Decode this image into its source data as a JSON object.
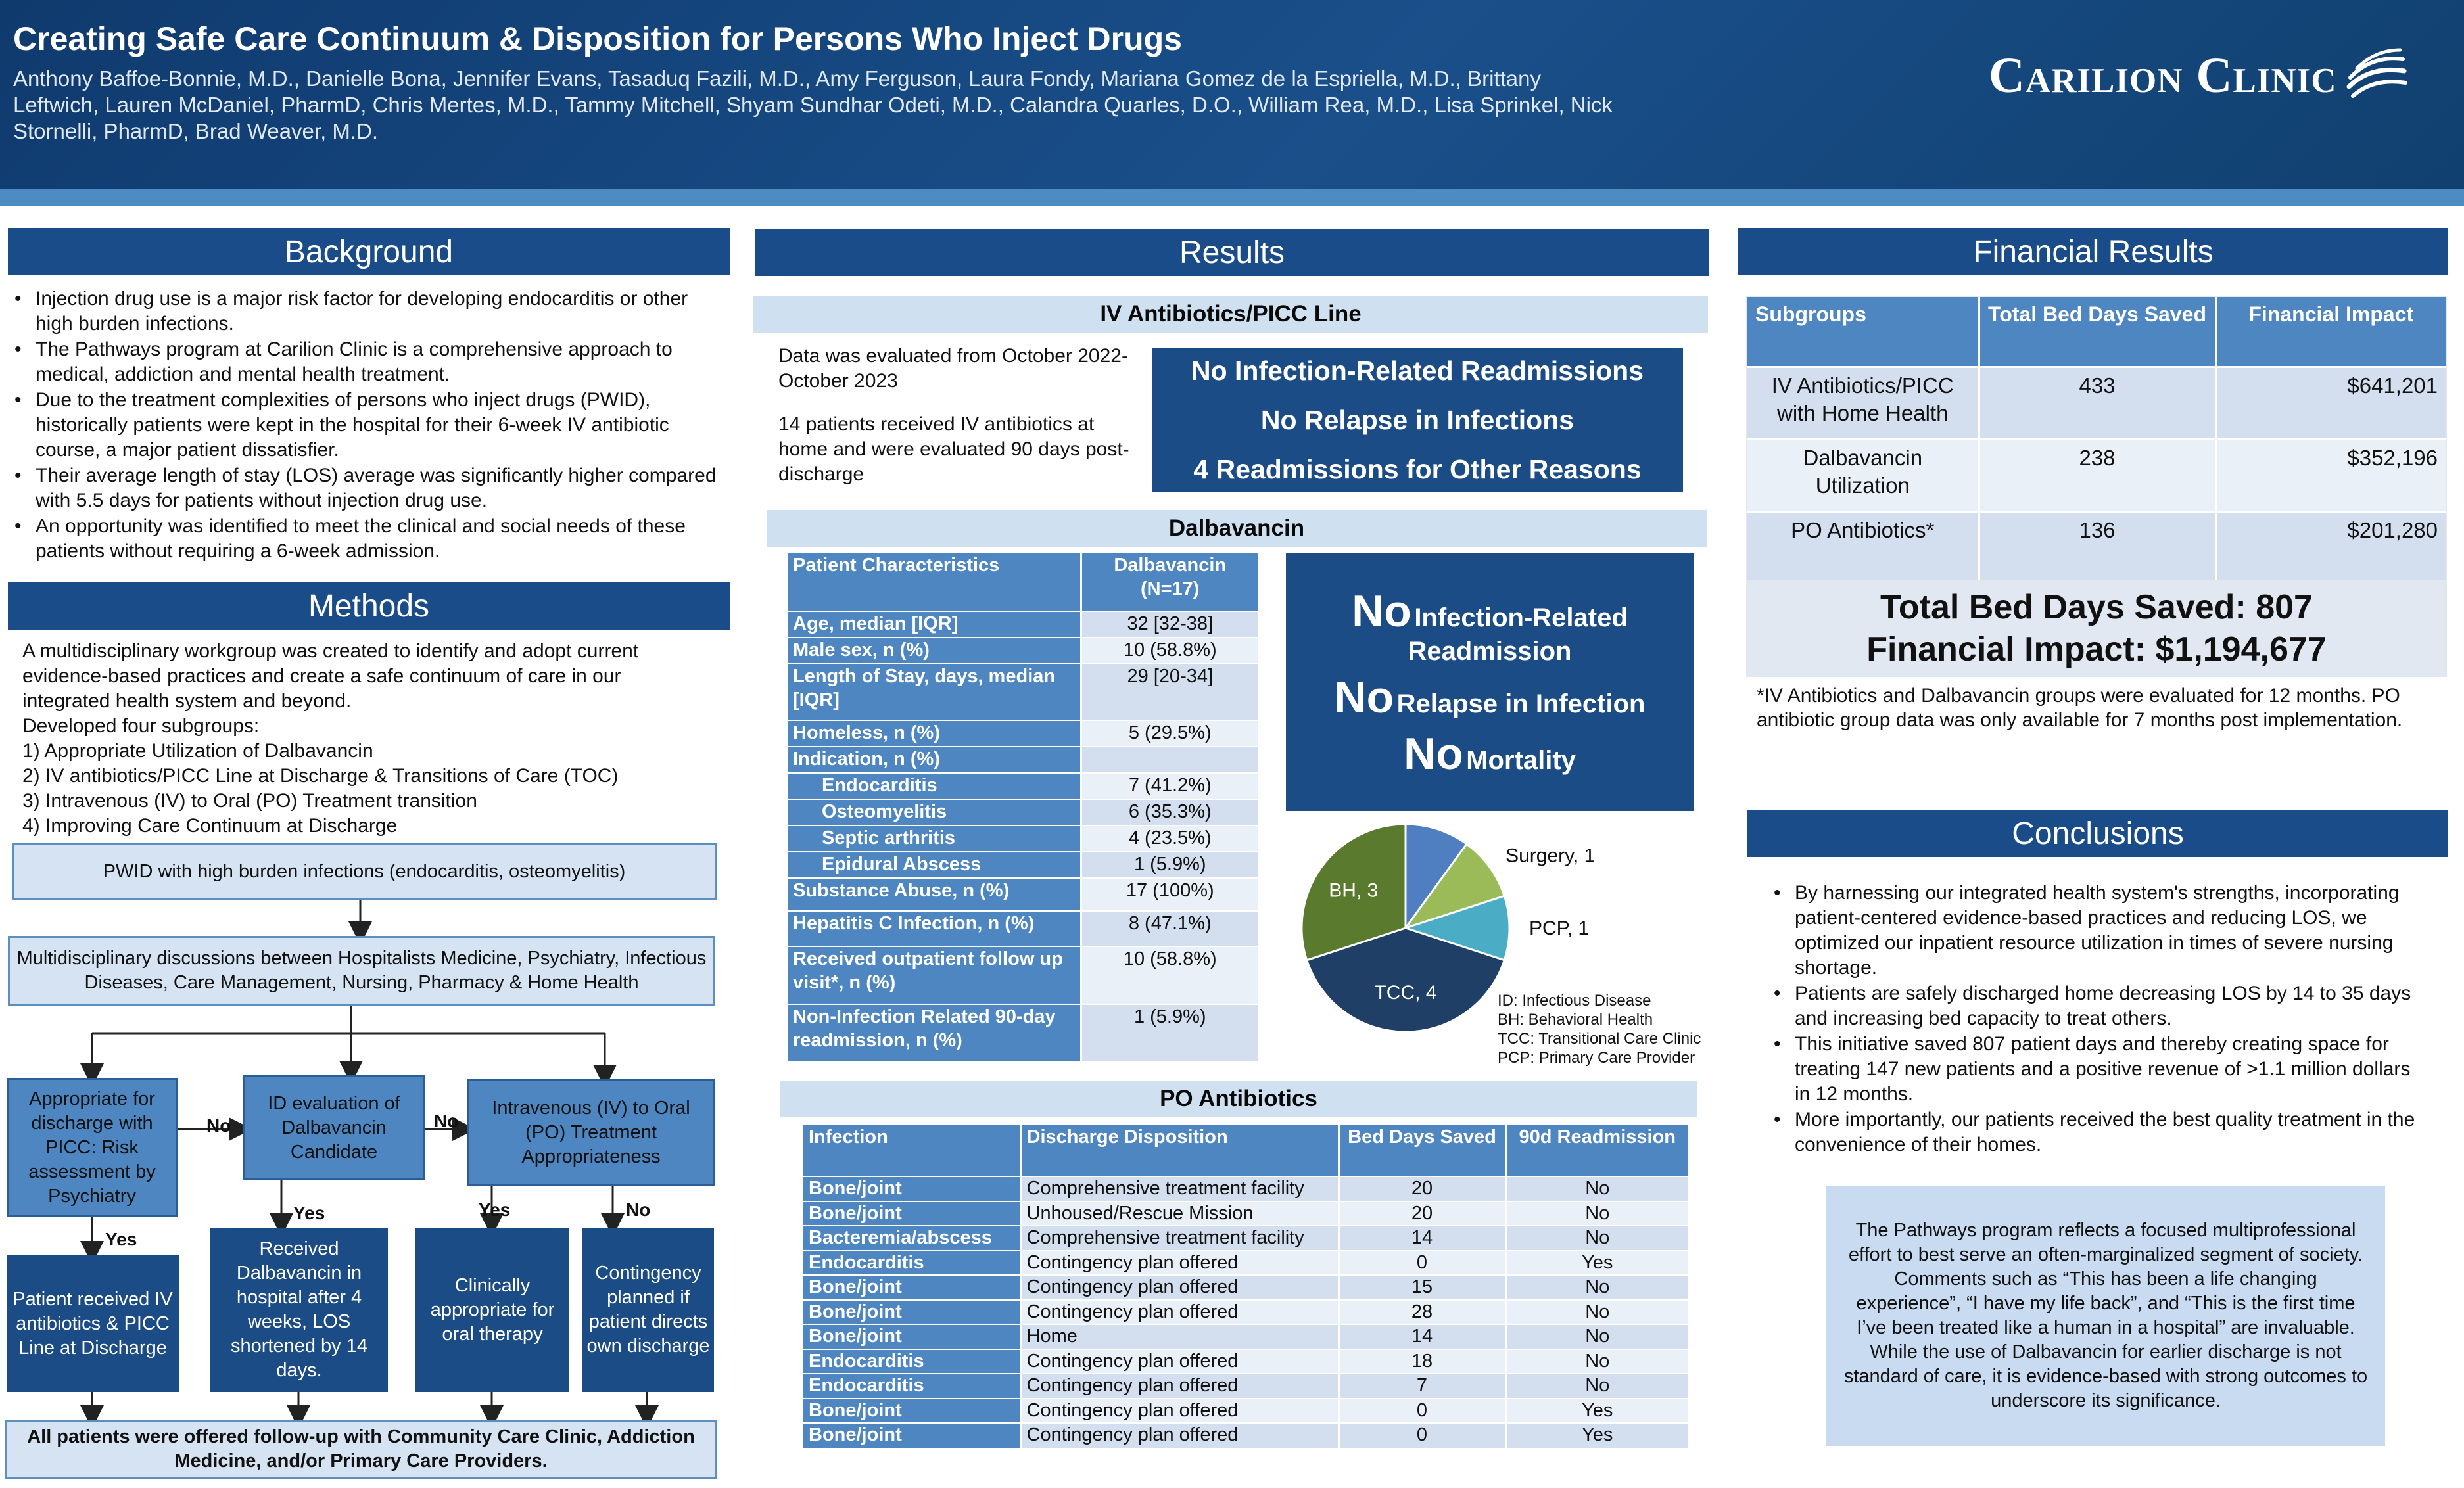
{
  "header": {
    "title": "Creating Safe Care Continuum & Disposition for Persons Who Inject Drugs",
    "authors": "Anthony Baffoe-Bonnie, M.D., Danielle Bona, Jennifer Evans, Tasaduq Fazili, M.D., Amy Ferguson, Laura Fondy, Mariana Gomez de la Espriella, M.D., Brittany Leftwich,  Lauren McDaniel, PharmD, Chris Mertes, M.D., Tammy Mitchell, Shyam Sundhar Odeti, M.D., Calandra Quarles, D.O., William Rea, M.D., Lisa Sprinkel, Nick Stornelli, PharmD, Brad Weaver, M.D.",
    "logo_text": "Carilion Clinic"
  },
  "background": {
    "heading": "Background",
    "bullets": [
      "Injection drug use is a major risk factor for developing endocarditis or other high burden infections.",
      "The Pathways program at Carilion Clinic is a comprehensive approach to medical, addiction and mental health treatment.",
      " Due to the treatment complexities of persons who inject drugs (PWID), historically patients were kept in the hospital for their 6-week IV antibiotic course, a major patient dissatisfier.",
      "Their average length of stay (LOS) average was significantly higher compared with 5.5 days for patients without injection drug use.",
      "An opportunity was identified to meet the clinical and social needs of these patients without requiring a 6-week admission."
    ]
  },
  "methods": {
    "heading": "Methods",
    "intro": "A multidisciplinary workgroup was created to identify and adopt current evidence-based practices and create a safe continuum of care in our integrated health system and beyond.",
    "subgroups_label": "Developed four subgroups:",
    "subgroups": [
      "1)  Appropriate Utilization of Dalbavancin",
      "2)  IV antibiotics/PICC Line at Discharge & Transitions of Care (TOC)",
      "3)  Intravenous (IV) to Oral (PO) Treatment transition",
      "4)  Improving Care Continuum at Discharge"
    ],
    "flow": {
      "start": "PWID with high burden infections (endocarditis, osteomyelitis)",
      "discuss": "Multidisciplinary discussions between Hospitalists Medicine, Psychiatry, Infectious Diseases, Care Management, Nursing, Pharmacy & Home Health",
      "d1": "Appropriate for discharge with PICC: Risk assessment by Psychiatry",
      "d2": "ID evaluation of Dalbavancin Candidate",
      "d3": "Intravenous (IV) to Oral (PO) Treatment Appropriateness",
      "o1": "Patient received IV antibiotics & PICC Line at Discharge",
      "o2": "Received Dalbavancin in hospital after 4 weeks, LOS shortened by 14 days.",
      "o3": "Clinically appropriate for oral therapy",
      "o4": "Contingency planned if patient directs own discharge",
      "final": "All patients were offered follow-up with Community Care Clinic, Addiction Medicine, and/or Primary Care Providers.",
      "yes": "Yes",
      "no": "No"
    }
  },
  "results": {
    "heading": "Results",
    "iv": {
      "heading": "IV Antibiotics/PICC Line",
      "text1": "Data was evaluated from October 2022-October 2023",
      "text2": " 14 patients received IV antibiotics at home and were evaluated 90 days post-discharge",
      "callout": [
        "No Infection-Related Readmissions",
        "No Relapse in Infections",
        "4 Readmissions for Other Reasons"
      ]
    },
    "dalba": {
      "heading": "Dalbavancin",
      "col1": "Patient Characteristics",
      "col2": "Dalbavancin (N=17)",
      "rows": [
        {
          "label": "Age, median [IQR]",
          "value": "32 [32-38]"
        },
        {
          "label": "Male sex, n (%)",
          "value": "10 (58.8%)"
        },
        {
          "label": "Length of Stay, days, median [IQR]",
          "value": "29 [20-34]"
        },
        {
          "label": "Homeless, n (%)",
          "value": "5 (29.5%)"
        },
        {
          "label": "Indication, n (%)",
          "value": ""
        },
        {
          "label": "Endocarditis",
          "value": "7 (41.2%)",
          "indent": true
        },
        {
          "label": "Osteomyelitis",
          "value": "6 (35.3%)",
          "indent": true
        },
        {
          "label": "Septic arthritis",
          "value": "4 (23.5%)",
          "indent": true
        },
        {
          "label": "Epidural Abscess",
          "value": "1 (5.9%)",
          "indent": true
        },
        {
          "label": "Substance Abuse, n (%)",
          "value": "17 (100%)"
        },
        {
          "label": "Hepatitis C Infection, n (%)",
          "value": "8 (47.1%)"
        },
        {
          "label": "Received outpatient follow up visit*, n (%)",
          "value": "10 (58.8%)"
        },
        {
          "label": "Non-Infection Related 90-day readmission, n (%)",
          "value": "1 (5.9%)"
        }
      ],
      "callout": [
        {
          "big": "No",
          "small": "Infection-Related Readmission"
        },
        {
          "big": "No",
          "small": "Relapse in Infection"
        },
        {
          "big": "No",
          "small": "Mortality"
        }
      ],
      "pie": {
        "slices": [
          {
            "label": "ID",
            "value": 1,
            "color": "#4f7fc0"
          },
          {
            "label": "Surgery",
            "value": 1,
            "color": "#9bbb59"
          },
          {
            "label": "PCP",
            "value": 1,
            "color": "#4bacc6"
          },
          {
            "label": "TCC",
            "value": 4,
            "color": "#1f3f66"
          },
          {
            "label": "BH",
            "value": 3,
            "color": "#5a7a2e"
          }
        ],
        "legend": [
          "ID: Infectious Disease",
          "BH: Behavioral Health",
          "TCC: Transitional Care Clinic",
          "PCP: Primary Care Provider"
        ]
      }
    },
    "po": {
      "heading": "PO Antibiotics",
      "columns": [
        "Infection",
        "Discharge Disposition",
        "Bed Days Saved",
        "90d Readmission"
      ],
      "rows": [
        [
          "Bone/joint",
          "Comprehensive treatment facility",
          "20",
          "No"
        ],
        [
          "Bone/joint",
          "Unhoused/Rescue Mission",
          "20",
          "No"
        ],
        [
          "Bacteremia/abscess",
          "Comprehensive treatment facility",
          "14",
          "No"
        ],
        [
          "Endocarditis",
          "Contingency plan offered",
          "0",
          "Yes"
        ],
        [
          "Bone/joint",
          "Contingency plan offered",
          "15",
          "No"
        ],
        [
          "Bone/joint",
          "Contingency plan offered",
          "28",
          "No"
        ],
        [
          "Bone/joint",
          "Home",
          "14",
          "No"
        ],
        [
          "Endocarditis",
          "Contingency plan offered",
          "18",
          "No"
        ],
        [
          "Endocarditis",
          "Contingency plan offered",
          "7",
          "No"
        ],
        [
          "Bone/joint",
          "Contingency plan offered",
          "0",
          "Yes"
        ],
        [
          "Bone/joint",
          "Contingency plan offered",
          "0",
          "Yes"
        ]
      ]
    }
  },
  "financial": {
    "heading": "Financial Results",
    "columns": [
      "Subgroups",
      "Total Bed Days Saved",
      "Financial Impact"
    ],
    "rows": [
      [
        "IV Antibiotics/PICC with Home Health",
        "433",
        "$641,201"
      ],
      [
        "Dalbavancin Utilization",
        "238",
        "$352,196"
      ],
      [
        "PO Antibiotics*",
        "136",
        "$201,280"
      ]
    ],
    "total_days": "Total Bed Days Saved: 807",
    "total_impact": "Financial Impact: $1,194,677",
    "footnote": "*IV Antibiotics and Dalbavancin groups were evaluated for 12 months. PO antibiotic group data was only available for 7 months post implementation."
  },
  "conclusions": {
    "heading": "Conclusions",
    "bullets": [
      "By harnessing our integrated health system's strengths, incorporating patient-centered evidence-based practices and reducing LOS, we optimized our inpatient resource utilization in times of severe nursing shortage.",
      "Patients are safely discharged home decreasing LOS by 14 to 35 days and increasing bed capacity to treat others.",
      "This initiative saved 807 patient days and thereby creating space for treating 147 new patients and a positive revenue of >1.1 million dollars in 12 months.",
      "More importantly, our patients received the best quality treatment in the convenience of their homes."
    ],
    "quote": "The Pathways program reflects a focused multiprofessional effort to best serve an often-marginalized segment of society.  Comments such as “This has been a life changing experience”, “I have my life back”, and “This is the first time I’ve been treated like a human in a hospital” are invaluable.  While the use of Dalbavancin for earlier discharge is not standard of care, it is evidence-based with strong outcomes to underscore its significance."
  }
}
